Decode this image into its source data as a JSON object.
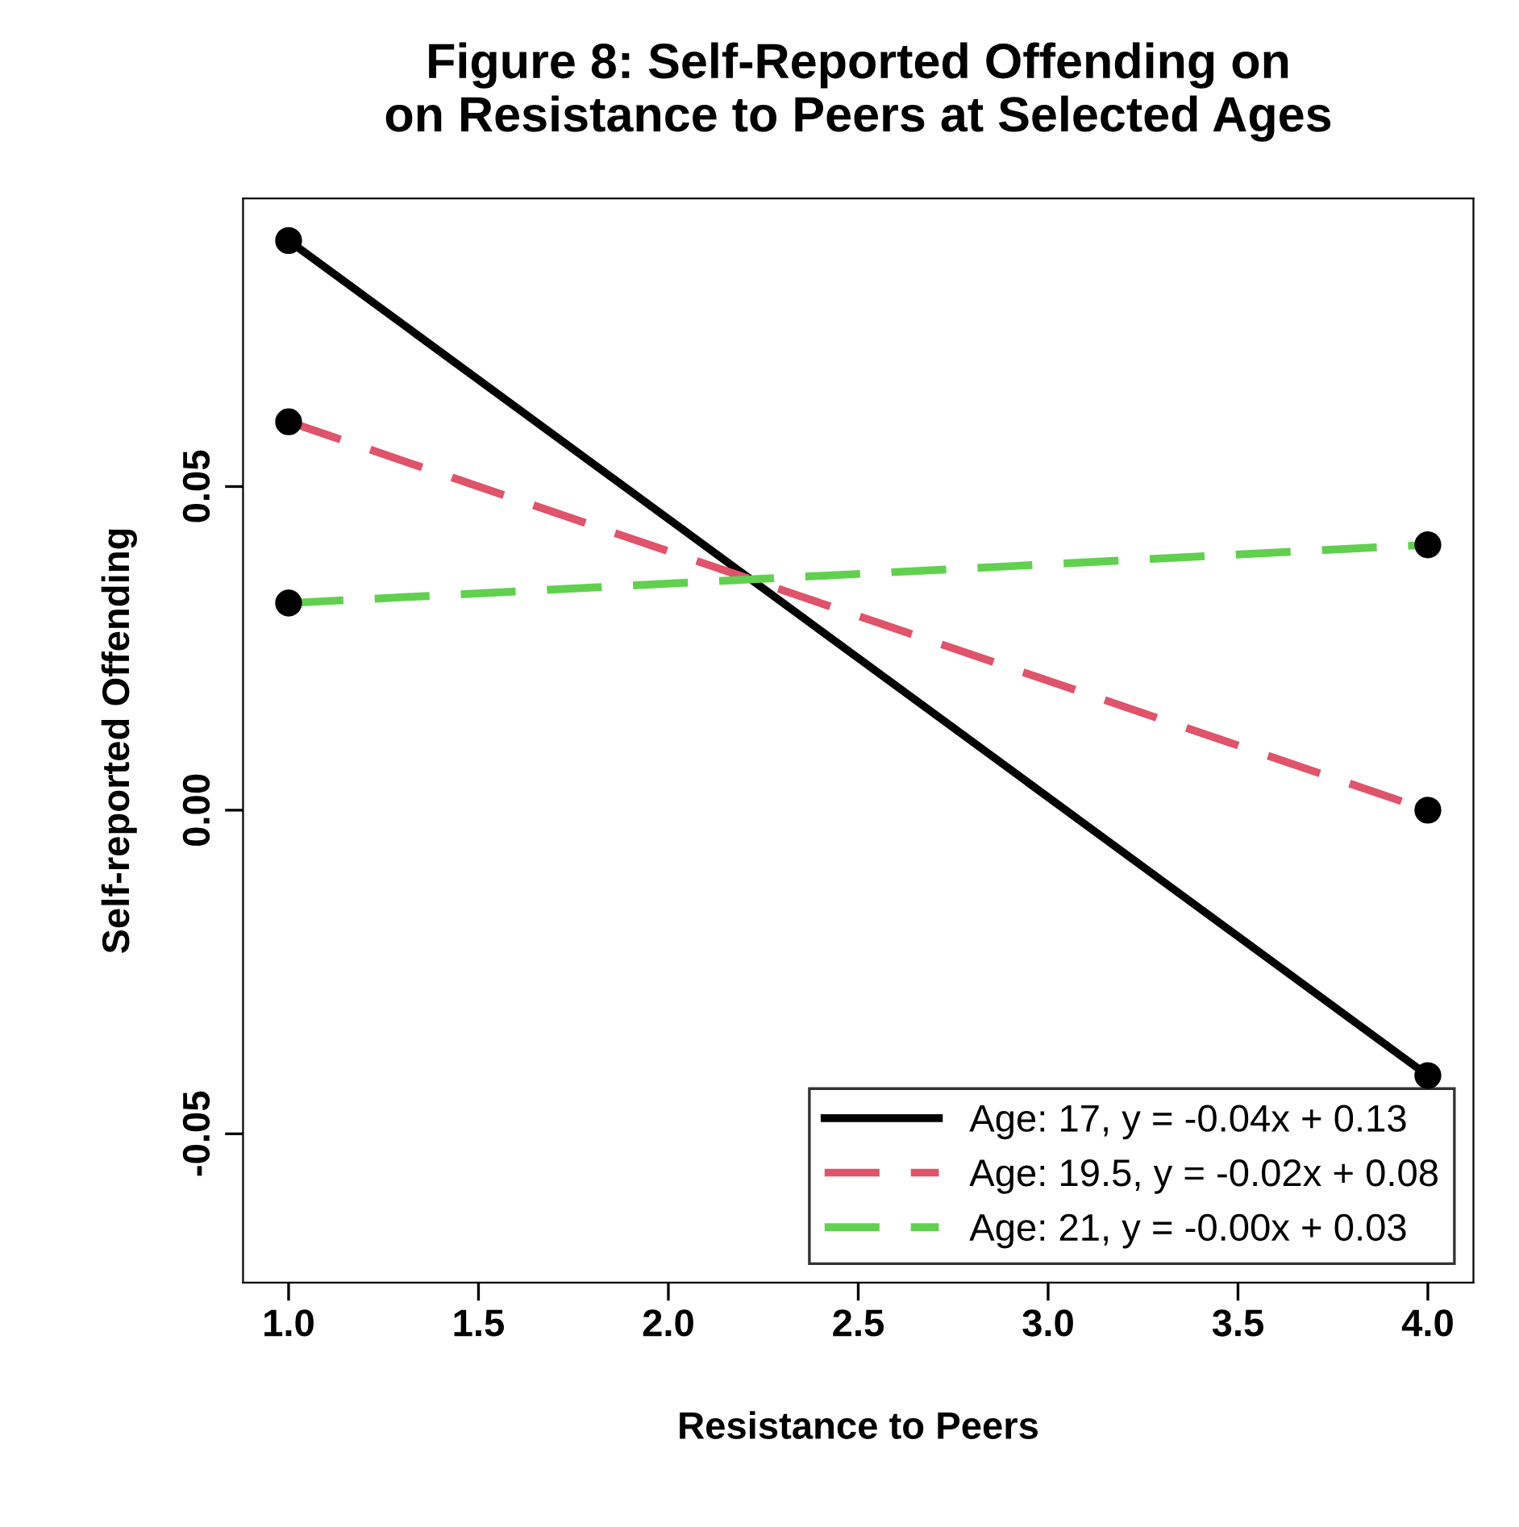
{
  "chart_data": {
    "type": "line",
    "title": "Figure 8: Self-Reported Offending on\non Resistance to Peers at Selected Ages",
    "xlabel": "Resistance to Peers",
    "ylabel": "Self-reported Offending",
    "xlim": [
      0.88,
      4.12
    ],
    "ylim": [
      -0.073,
      0.0945
    ],
    "xticks": [
      {
        "value": 1,
        "label": "1.0"
      },
      {
        "value": 1.5,
        "label": "1.5"
      },
      {
        "value": 2,
        "label": "2.0"
      },
      {
        "value": 2.5,
        "label": "2.5"
      },
      {
        "value": 3,
        "label": "3.0"
      },
      {
        "value": 3.5,
        "label": "3.5"
      },
      {
        "value": 4,
        "label": "4.0"
      }
    ],
    "yticks": [
      {
        "value": -0.05,
        "label": "-0.05"
      },
      {
        "value": 0,
        "label": "0.00"
      },
      {
        "value": 0.05,
        "label": "0.05"
      }
    ],
    "x": [
      1,
      4
    ],
    "grid": false,
    "legend": "bottom right",
    "series": [
      {
        "name": "Age: 17, y = -0.04x + 0.13",
        "color": "#000000",
        "values": [
          0.088,
          -0.041
        ],
        "line_style": "solid"
      },
      {
        "name": "Age: 19.5, y = -0.02x + 0.08",
        "color": "#df536b",
        "values": [
          0.06,
          0.0
        ],
        "line_style": "dashed"
      },
      {
        "name": "Age: 21, y = -0.00x + 0.03",
        "color": "#61d04f",
        "values": [
          0.032,
          0.041
        ],
        "line_style": "dashed"
      },
      {
        "type": "scatter",
        "color": "#000000",
        "marker": "circle",
        "values": [
          0.088,
          -0.041
        ]
      },
      {
        "type": "scatter",
        "color": "#000000",
        "marker": "circle",
        "values": [
          0.06,
          0.0
        ]
      },
      {
        "type": "scatter",
        "color": "#000000",
        "marker": "circle",
        "values": [
          0.032,
          0.041
        ]
      }
    ]
  }
}
